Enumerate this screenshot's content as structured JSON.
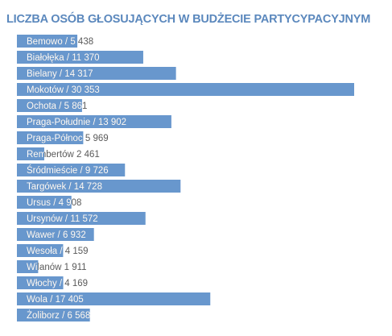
{
  "chart_data": {
    "type": "bar",
    "orientation": "horizontal",
    "title": "LICZBA OSÓB GŁOSUJĄCYCH W BUDŻECIE PARTYCYPACYJNYM",
    "xlabel": "",
    "ylabel": "",
    "bar_color": "#6897cd",
    "label_color_inside": "#ffffff",
    "label_color_outside": "#5a5a5a",
    "xlim": [
      0,
      31000
    ],
    "grid": false,
    "legend": "none",
    "categories": [
      "Bemowo",
      "Białołęka",
      "Bielany",
      "Mokotów",
      "Ochota",
      "Praga-Południe",
      "Praga-Północ",
      "Rembertów",
      "Śródmieście",
      "Targówek",
      "Ursus",
      "Ursynów",
      "Wawer",
      "Wesoła",
      "Wilanów",
      "Włochy",
      "Wola",
      "Żoliborz"
    ],
    "labels": [
      "Bemowo / 5 438",
      "Białołęka / 11 370",
      "Bielany / 14 317",
      "Mokotów / 30 353",
      "Ochota / 5 861",
      "Praga-Południe / 13 902",
      "Praga-Północ 5 969",
      "Rembertów 2 461",
      "Śródmieście / 9 726",
      "Targówek / 14 728",
      "Ursus /  4 908",
      "Ursynów / 11 572",
      "Wawer / 6 932",
      "Wesoła / 4 159",
      "Wilanów 1 911",
      "Włochy / 4 169",
      "Wola / 17 405",
      "Żoliborz / 6 568"
    ],
    "values": [
      5438,
      11370,
      14317,
      30353,
      5861,
      13902,
      5969,
      2461,
      9726,
      14728,
      4908,
      11572,
      6932,
      4159,
      1911,
      4169,
      17405,
      6568
    ]
  }
}
